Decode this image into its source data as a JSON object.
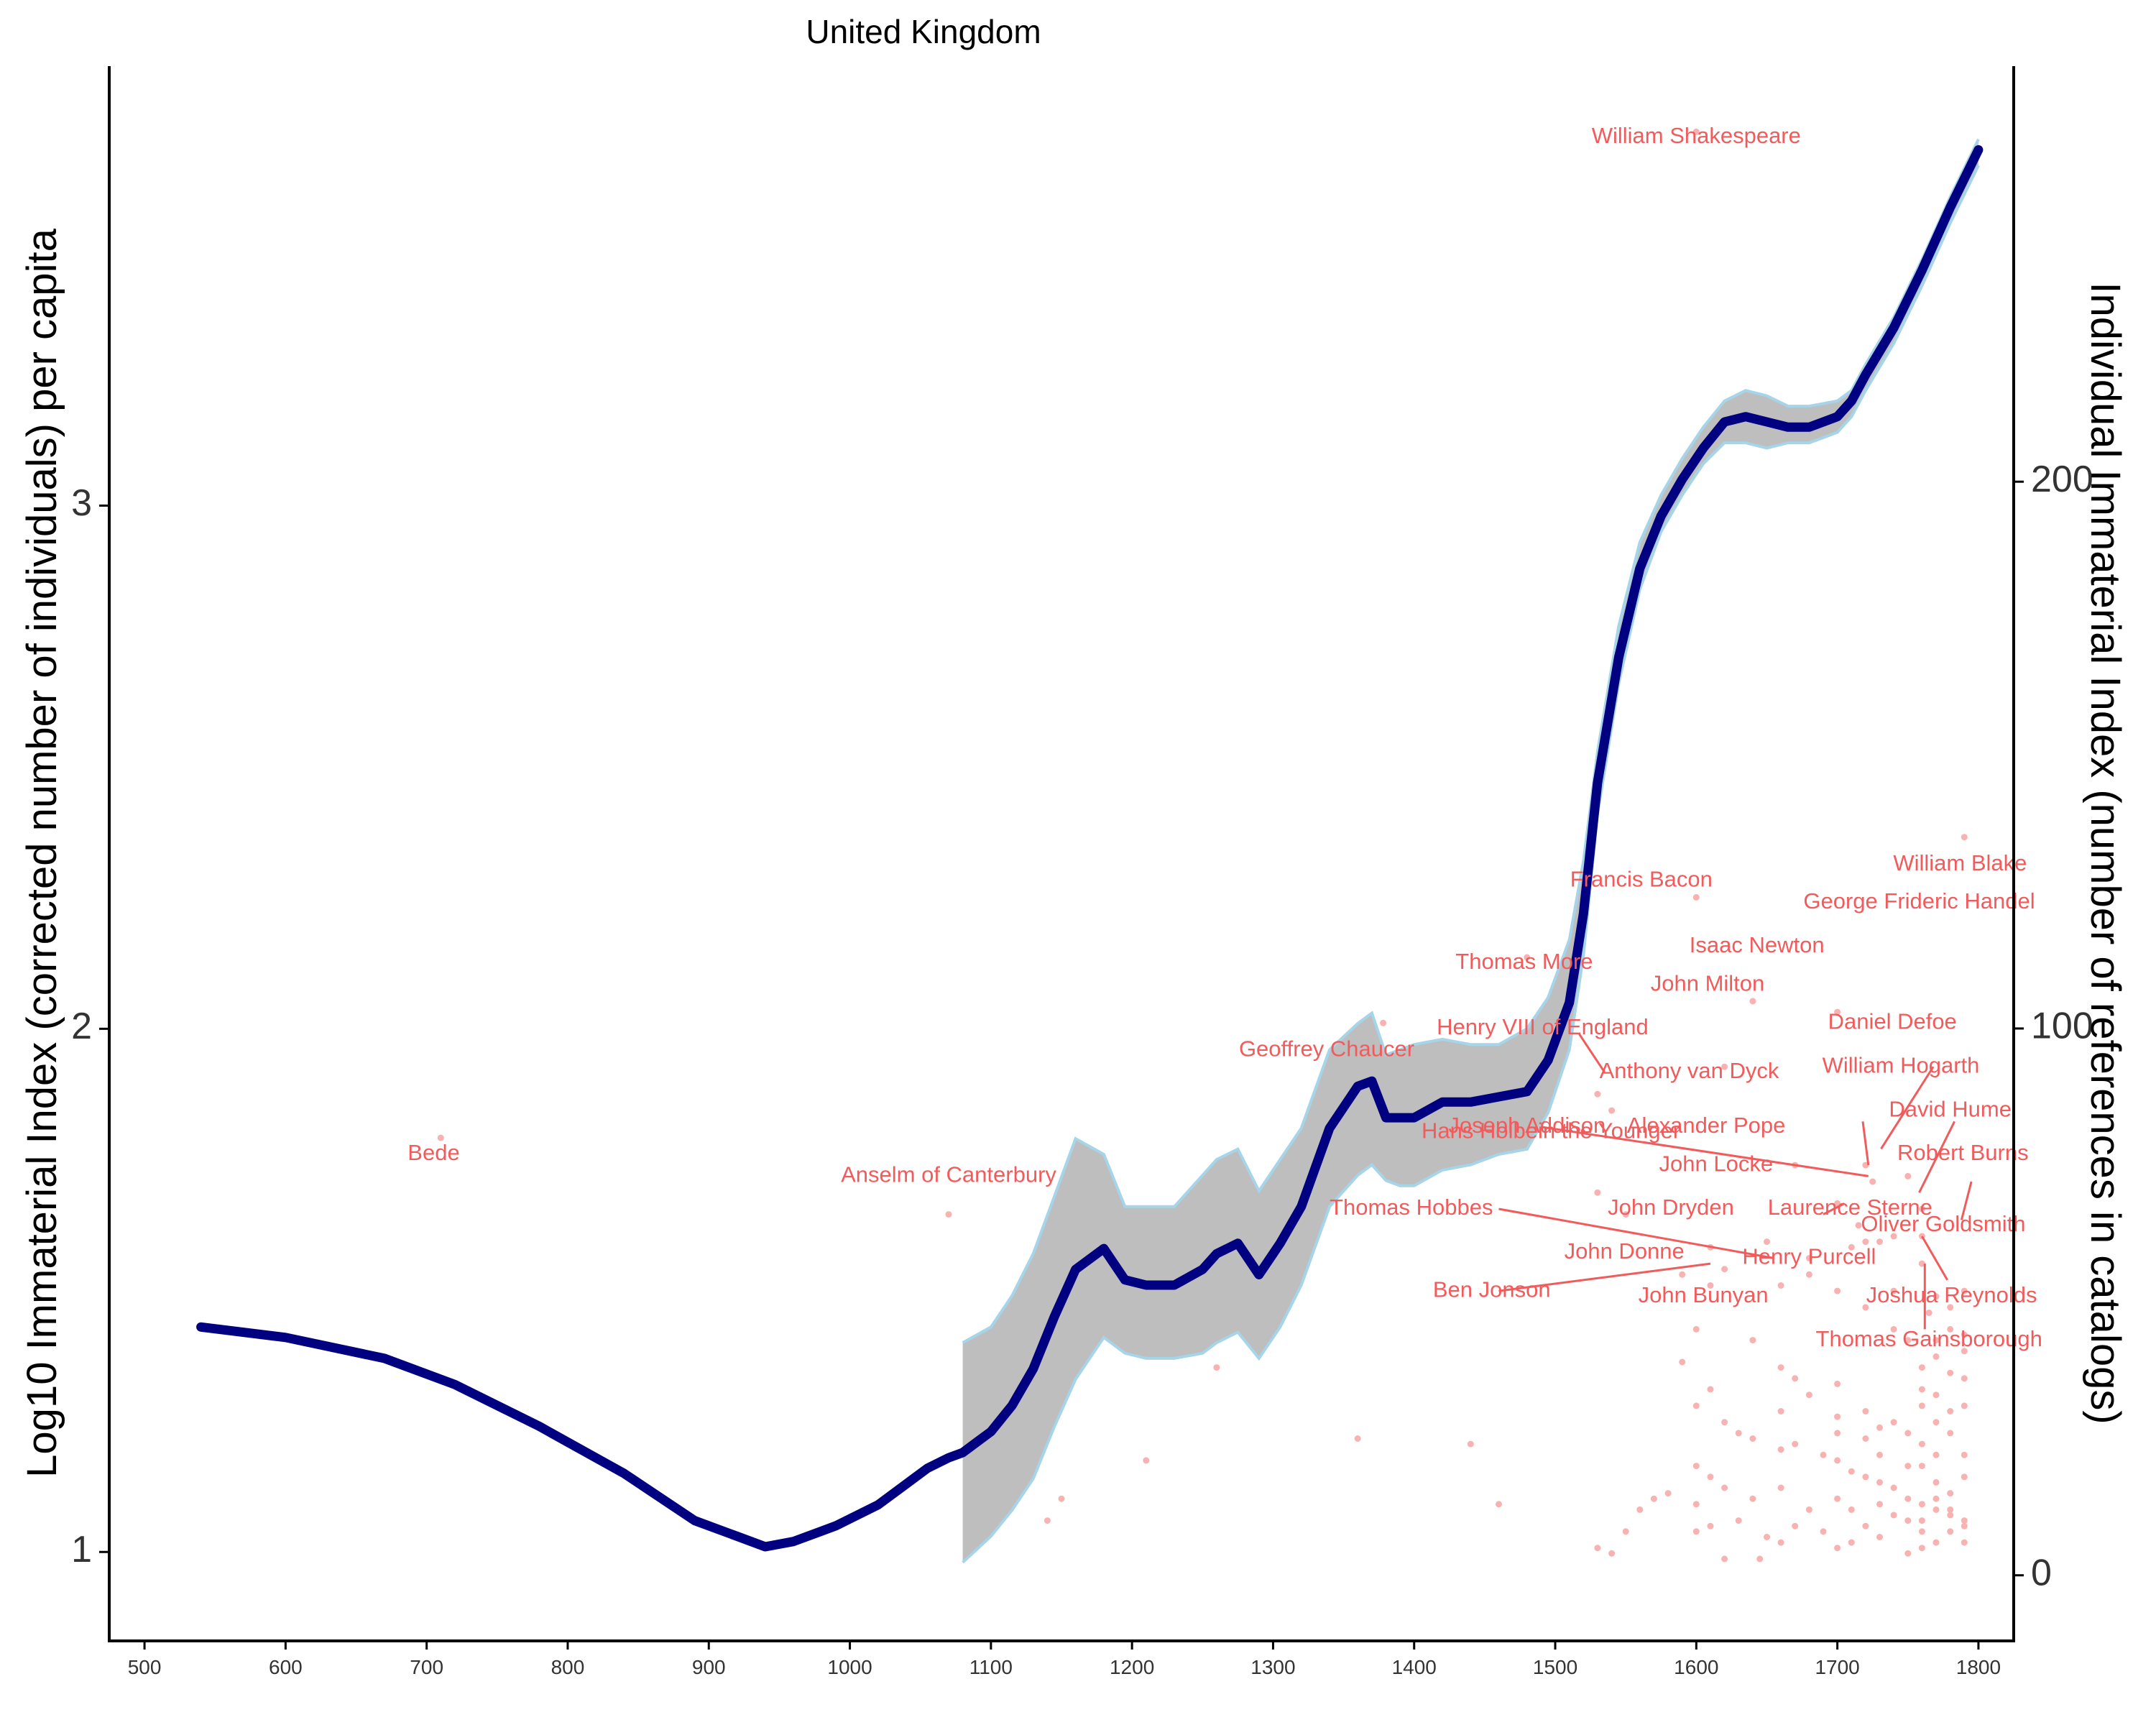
{
  "chart_data": {
    "type": "line",
    "title": "United Kingdom",
    "ylabel_left": "Log10 Immaterial Index (corrected number of individuals) per capita",
    "ylabel_right": "Individual Immaterial Index (number of references in catalogs)",
    "x_range": [
      475,
      1825
    ],
    "y_left_range": [
      0.83,
      3.84
    ],
    "y_right_range": [
      -12,
      276
    ],
    "x_ticks": [
      "500",
      "600",
      "700",
      "800",
      "900",
      "1000",
      "1100",
      "1200",
      "1300",
      "1400",
      "1500",
      "1600",
      "1700",
      "1800"
    ],
    "y_left_ticks": [
      "1",
      "2",
      "3"
    ],
    "y_right_ticks": [
      "0",
      "100",
      "200"
    ],
    "grid": false,
    "colors": {
      "trend": "#000080",
      "ribbon_fill": "#bebebe",
      "ribbon_edge": "#a6d4e8",
      "labels": "#f25b5b",
      "points": "#f9b2b2"
    },
    "series": [
      {
        "role": "trend",
        "x": [
          540,
          600,
          670,
          720,
          780,
          840,
          890,
          920,
          940,
          960,
          990,
          1020,
          1040,
          1055,
          1070,
          1080,
          1090,
          1100,
          1115,
          1130,
          1145,
          1160,
          1180,
          1195,
          1210,
          1230,
          1250,
          1260,
          1275,
          1290,
          1305,
          1320,
          1340,
          1360,
          1370,
          1380,
          1390,
          1400,
          1420,
          1440,
          1460,
          1480,
          1495,
          1510,
          1520,
          1530,
          1545,
          1560,
          1575,
          1590,
          1605,
          1620,
          1635,
          1650,
          1665,
          1680,
          1700,
          1710,
          1720,
          1740,
          1760,
          1780,
          1800
        ],
        "y": [
          1.43,
          1.41,
          1.37,
          1.32,
          1.24,
          1.15,
          1.06,
          1.03,
          1.01,
          1.02,
          1.05,
          1.09,
          1.13,
          1.16,
          1.18,
          1.19,
          1.21,
          1.23,
          1.28,
          1.35,
          1.45,
          1.54,
          1.58,
          1.52,
          1.51,
          1.51,
          1.54,
          1.57,
          1.59,
          1.53,
          1.59,
          1.66,
          1.81,
          1.89,
          1.9,
          1.83,
          1.83,
          1.83,
          1.86,
          1.86,
          1.87,
          1.88,
          1.94,
          2.05,
          2.22,
          2.47,
          2.71,
          2.88,
          2.98,
          3.05,
          3.11,
          3.16,
          3.17,
          3.16,
          3.15,
          3.15,
          3.17,
          3.2,
          3.25,
          3.34,
          3.45,
          3.57,
          3.68
        ]
      },
      {
        "role": "ribbon_upper",
        "x": [
          1080,
          1100,
          1115,
          1130,
          1145,
          1160,
          1180,
          1195,
          1210,
          1230,
          1250,
          1260,
          1275,
          1290,
          1305,
          1320,
          1340,
          1360,
          1370,
          1380,
          1390,
          1400,
          1420,
          1440,
          1460,
          1480,
          1495,
          1510,
          1520,
          1530,
          1545,
          1560,
          1575,
          1590,
          1605,
          1620,
          1635,
          1650,
          1665,
          1680,
          1700,
          1710,
          1720,
          1740,
          1760,
          1780,
          1800
        ],
        "y": [
          1.4,
          1.43,
          1.49,
          1.57,
          1.68,
          1.79,
          1.76,
          1.66,
          1.66,
          1.66,
          1.72,
          1.75,
          1.77,
          1.69,
          1.75,
          1.81,
          1.96,
          2.01,
          2.03,
          1.95,
          1.96,
          1.97,
          1.98,
          1.97,
          1.97,
          2.0,
          2.06,
          2.17,
          2.32,
          2.53,
          2.77,
          2.93,
          3.02,
          3.09,
          3.15,
          3.2,
          3.22,
          3.21,
          3.19,
          3.19,
          3.2,
          3.22,
          3.27,
          3.36,
          3.47,
          3.59,
          3.7
        ]
      },
      {
        "role": "ribbon_lower",
        "x": [
          1080,
          1100,
          1115,
          1130,
          1145,
          1160,
          1180,
          1195,
          1210,
          1230,
          1250,
          1260,
          1275,
          1290,
          1305,
          1320,
          1340,
          1360,
          1370,
          1380,
          1390,
          1400,
          1420,
          1440,
          1460,
          1480,
          1495,
          1510,
          1520,
          1530,
          1545,
          1560,
          1575,
          1590,
          1605,
          1620,
          1635,
          1650,
          1665,
          1680,
          1700,
          1710,
          1720,
          1740,
          1760,
          1780,
          1800
        ],
        "y": [
          0.98,
          1.03,
          1.08,
          1.14,
          1.24,
          1.33,
          1.41,
          1.38,
          1.37,
          1.37,
          1.38,
          1.4,
          1.42,
          1.37,
          1.43,
          1.51,
          1.66,
          1.72,
          1.74,
          1.71,
          1.7,
          1.7,
          1.73,
          1.74,
          1.76,
          1.77,
          1.84,
          1.96,
          2.14,
          2.41,
          2.66,
          2.84,
          2.95,
          3.02,
          3.08,
          3.12,
          3.12,
          3.11,
          3.12,
          3.12,
          3.14,
          3.17,
          3.22,
          3.31,
          3.42,
          3.54,
          3.65
        ]
      }
    ],
    "labels": [
      {
        "text": "William Shakespeare",
        "x": 1600,
        "y": 263
      },
      {
        "text": "Bede",
        "x": 705,
        "y": 77
      },
      {
        "text": "Anselm of Canterbury",
        "x": 1070,
        "y": 73
      },
      {
        "text": "Geoffrey Chaucer",
        "x": 1338,
        "y": 96
      },
      {
        "text": "Thomas More",
        "x": 1478,
        "y": 112
      },
      {
        "text": "Henry VIII of England",
        "x": 1491,
        "y": 100
      },
      {
        "text": "Hans Holbein the Younger",
        "x": 1497,
        "y": 81
      },
      {
        "text": "Francis Bacon",
        "x": 1561,
        "y": 127
      },
      {
        "text": "Isaac Newton",
        "x": 1643,
        "y": 115
      },
      {
        "text": "John Milton",
        "x": 1608,
        "y": 108
      },
      {
        "text": "Anthony van Dyck",
        "x": 1595,
        "y": 92
      },
      {
        "text": "Joseph Addison",
        "x": 1480,
        "y": 82
      },
      {
        "text": "Alexander Pope",
        "x": 1607,
        "y": 82
      },
      {
        "text": "John Locke",
        "x": 1614,
        "y": 75
      },
      {
        "text": "Thomas Hobbes",
        "x": 1398,
        "y": 67
      },
      {
        "text": "John Dryden",
        "x": 1582,
        "y": 67
      },
      {
        "text": "Laurence Sterne",
        "x": 1709,
        "y": 67
      },
      {
        "text": "John Donne",
        "x": 1549,
        "y": 59
      },
      {
        "text": "Henry Purcell",
        "x": 1680,
        "y": 58
      },
      {
        "text": "Ben Jonson",
        "x": 1455,
        "y": 52
      },
      {
        "text": "John Bunyan",
        "x": 1605,
        "y": 51
      },
      {
        "text": "William Blake",
        "x": 1787,
        "y": 130
      },
      {
        "text": "George Frideric Handel",
        "x": 1758,
        "y": 123
      },
      {
        "text": "Daniel Defoe",
        "x": 1739,
        "y": 101
      },
      {
        "text": "William Hogarth",
        "x": 1745,
        "y": 93
      },
      {
        "text": "David Hume",
        "x": 1780,
        "y": 85
      },
      {
        "text": "Robert Burns",
        "x": 1789,
        "y": 77
      },
      {
        "text": "Oliver Goldsmith",
        "x": 1775,
        "y": 64
      },
      {
        "text": "Joshua Reynolds",
        "x": 1781,
        "y": 51
      },
      {
        "text": "Thomas Gainsborough",
        "x": 1765,
        "y": 43
      }
    ],
    "points": [
      [
        710,
        80
      ],
      [
        1070,
        66
      ],
      [
        1600,
        264
      ],
      [
        1790,
        135
      ],
      [
        1600,
        124
      ],
      [
        1640,
        105
      ],
      [
        1700,
        103
      ],
      [
        1540,
        85
      ],
      [
        1378,
        101
      ],
      [
        1480,
        113
      ],
      [
        1620,
        93
      ],
      [
        1530,
        88
      ],
      [
        1720,
        75
      ],
      [
        1750,
        73
      ],
      [
        1670,
        75
      ],
      [
        1650,
        61
      ],
      [
        1725,
        72
      ],
      [
        1610,
        60
      ],
      [
        1590,
        55
      ],
      [
        1620,
        56
      ],
      [
        1680,
        58
      ],
      [
        1700,
        68
      ],
      [
        1550,
        66
      ],
      [
        1530,
        70
      ],
      [
        1260,
        38
      ],
      [
        1360,
        25
      ],
      [
        1440,
        24
      ],
      [
        1460,
        13
      ],
      [
        1210,
        21
      ],
      [
        1150,
        14
      ],
      [
        1140,
        10
      ],
      [
        1600,
        45
      ],
      [
        1640,
        43
      ],
      [
        1590,
        39
      ],
      [
        1610,
        53
      ],
      [
        1660,
        53
      ],
      [
        1680,
        55
      ],
      [
        1700,
        52
      ],
      [
        1740,
        52
      ],
      [
        1760,
        57
      ],
      [
        1770,
        51
      ],
      [
        1780,
        49
      ],
      [
        1790,
        44
      ],
      [
        1765,
        48
      ],
      [
        1760,
        62
      ],
      [
        1740,
        62
      ],
      [
        1730,
        61
      ],
      [
        1720,
        61
      ],
      [
        1715,
        64
      ],
      [
        1710,
        60
      ],
      [
        1760,
        67
      ],
      [
        1720,
        49
      ],
      [
        1740,
        45
      ],
      [
        1750,
        43
      ],
      [
        1770,
        40
      ],
      [
        1790,
        41
      ],
      [
        1780,
        37
      ],
      [
        1660,
        38
      ],
      [
        1670,
        36
      ],
      [
        1700,
        35
      ],
      [
        1760,
        34
      ],
      [
        1720,
        30
      ],
      [
        1740,
        28
      ],
      [
        1750,
        26
      ],
      [
        1760,
        24
      ],
      [
        1770,
        28
      ],
      [
        1780,
        30
      ],
      [
        1790,
        31
      ],
      [
        1620,
        28
      ],
      [
        1630,
        26
      ],
      [
        1640,
        25
      ],
      [
        1660,
        23
      ],
      [
        1670,
        24
      ],
      [
        1690,
        22
      ],
      [
        1700,
        21
      ],
      [
        1710,
        19
      ],
      [
        1720,
        18
      ],
      [
        1730,
        17
      ],
      [
        1740,
        16
      ],
      [
        1750,
        14
      ],
      [
        1760,
        13
      ],
      [
        1770,
        12
      ],
      [
        1780,
        11
      ],
      [
        1790,
        10
      ],
      [
        1600,
        20
      ],
      [
        1610,
        18
      ],
      [
        1620,
        16
      ],
      [
        1580,
        15
      ],
      [
        1570,
        14
      ],
      [
        1560,
        12
      ],
      [
        1550,
        8
      ],
      [
        1530,
        5
      ],
      [
        1540,
        4
      ],
      [
        1600,
        8
      ],
      [
        1610,
        9
      ],
      [
        1630,
        10
      ],
      [
        1650,
        7
      ],
      [
        1660,
        6
      ],
      [
        1670,
        9
      ],
      [
        1690,
        8
      ],
      [
        1700,
        5
      ],
      [
        1710,
        6
      ],
      [
        1720,
        9
      ],
      [
        1730,
        7
      ],
      [
        1750,
        4
      ],
      [
        1760,
        5
      ],
      [
        1770,
        6
      ],
      [
        1780,
        8
      ],
      [
        1790,
        9
      ],
      [
        1620,
        3
      ],
      [
        1645,
        3
      ],
      [
        1660,
        16
      ],
      [
        1700,
        26
      ],
      [
        1760,
        20
      ],
      [
        1770,
        22
      ],
      [
        1780,
        15
      ],
      [
        1790,
        18
      ],
      [
        1750,
        20
      ],
      [
        1730,
        22
      ],
      [
        1770,
        17
      ],
      [
        1760,
        10
      ],
      [
        1600,
        13
      ],
      [
        1640,
        14
      ],
      [
        1680,
        12
      ],
      [
        1700,
        14
      ],
      [
        1710,
        12
      ],
      [
        1730,
        13
      ],
      [
        1740,
        11
      ],
      [
        1750,
        10
      ],
      [
        1760,
        8
      ],
      [
        1770,
        14
      ],
      [
        1780,
        12
      ],
      [
        1790,
        6
      ],
      [
        1600,
        31
      ],
      [
        1610,
        34
      ],
      [
        1660,
        30
      ],
      [
        1680,
        33
      ],
      [
        1700,
        29
      ],
      [
        1720,
        25
      ],
      [
        1730,
        27
      ],
      [
        1760,
        31
      ],
      [
        1770,
        33
      ],
      [
        1780,
        26
      ],
      [
        1790,
        22
      ],
      [
        1770,
        43
      ],
      [
        1790,
        52
      ],
      [
        1760,
        38
      ],
      [
        1780,
        45
      ],
      [
        1790,
        36
      ]
    ]
  }
}
